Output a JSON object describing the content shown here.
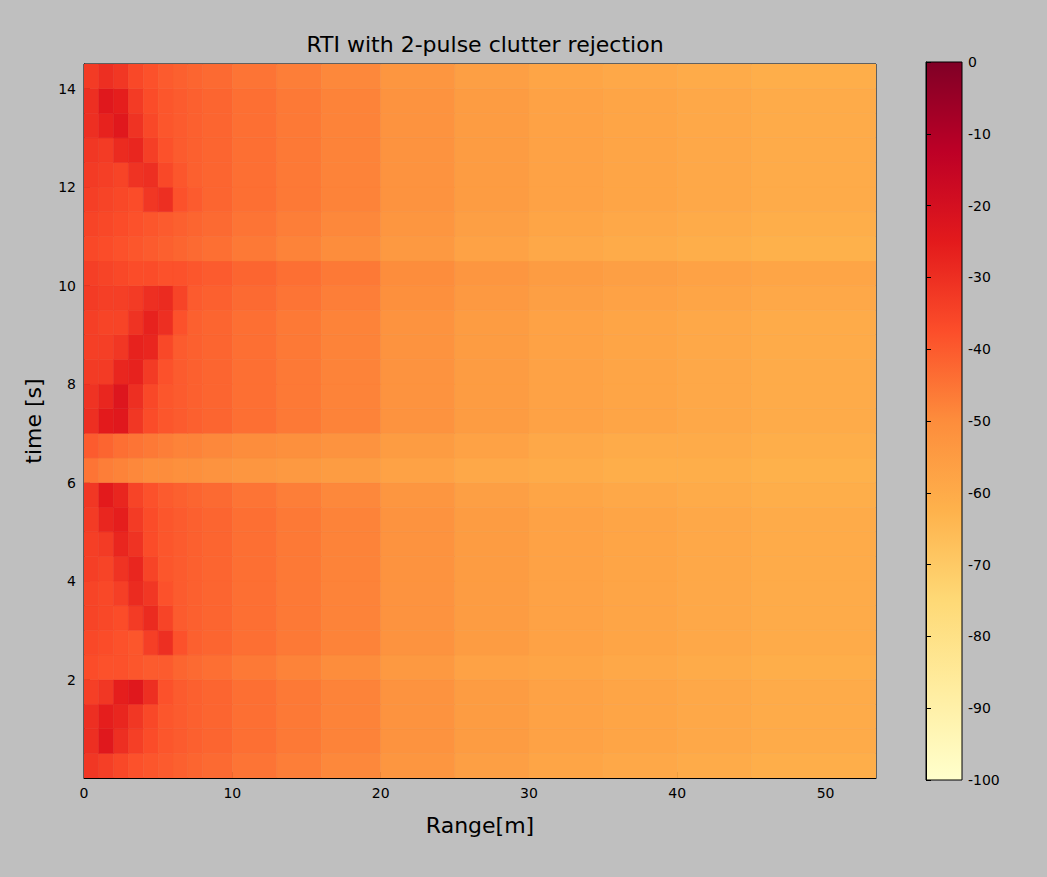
{
  "chart_data": {
    "type": "heatmap",
    "title": "RTI with 2-pulse clutter rejection",
    "x_label": "Range[m]",
    "y_label": "time [s]",
    "xlim": [
      0,
      53.4
    ],
    "xticks": [
      0,
      10,
      20,
      30,
      40,
      50
    ],
    "ylim": [
      0,
      14.5
    ],
    "yticks": [
      2,
      4,
      6,
      8,
      10,
      12,
      14
    ],
    "x_edges": [
      0,
      1,
      2,
      3,
      4,
      5,
      6,
      7,
      8,
      10,
      13,
      16,
      20,
      25,
      30,
      35,
      40,
      45,
      53.4
    ],
    "y_edges": [
      0,
      0.5,
      1,
      1.5,
      2,
      2.5,
      3,
      3.5,
      4,
      4.5,
      5,
      5.5,
      6,
      6.5,
      7,
      7.5,
      8,
      8.5,
      9,
      9.5,
      10,
      10.5,
      11,
      11.5,
      12,
      12.5,
      13,
      13.5,
      14,
      14.5
    ],
    "cells": [
      [
        -32,
        -34,
        -36,
        -38,
        -39,
        -40,
        -41,
        -42,
        -43,
        -45,
        -47,
        -49,
        -53,
        -56,
        -58,
        -59,
        -60,
        -61
      ],
      [
        -30,
        -24,
        -30,
        -34,
        -37,
        -39,
        -40,
        -41,
        -42,
        -44,
        -46,
        -48,
        -52,
        -55,
        -57,
        -58,
        -59,
        -60
      ],
      [
        -30,
        -26,
        -28,
        -32,
        -36,
        -39,
        -40,
        -41,
        -42,
        -44,
        -46,
        -48,
        -52,
        -55,
        -57,
        -58,
        -59,
        -60
      ],
      [
        -34,
        -32,
        -26,
        -24,
        -30,
        -38,
        -40,
        -41,
        -42,
        -44,
        -46,
        -48,
        -52,
        -55,
        -57,
        -58,
        -59,
        -60
      ],
      [
        -37,
        -38,
        -38,
        -39,
        -40,
        -40,
        -42,
        -43,
        -44,
        -46,
        -48,
        -50,
        -54,
        -57,
        -58,
        -59,
        -60,
        -61
      ],
      [
        -36,
        -37,
        -38,
        -39,
        -34,
        -30,
        -38,
        -41,
        -42,
        -44,
        -46,
        -48,
        -52,
        -55,
        -57,
        -58,
        -59,
        -60
      ],
      [
        -35,
        -36,
        -37,
        -33,
        -29,
        -35,
        -40,
        -41,
        -42,
        -44,
        -46,
        -48,
        -52,
        -55,
        -57,
        -58,
        -59,
        -60
      ],
      [
        -35,
        -36,
        -34,
        -29,
        -32,
        -38,
        -40,
        -41,
        -42,
        -44,
        -46,
        -48,
        -52,
        -55,
        -57,
        -58,
        -59,
        -60
      ],
      [
        -34,
        -35,
        -31,
        -28,
        -35,
        -39,
        -40,
        -41,
        -42,
        -44,
        -46,
        -48,
        -52,
        -55,
        -57,
        -58,
        -59,
        -60
      ],
      [
        -34,
        -33,
        -28,
        -31,
        -37,
        -39,
        -40,
        -41,
        -42,
        -44,
        -46,
        -48,
        -52,
        -55,
        -57,
        -58,
        -59,
        -60
      ],
      [
        -33,
        -28,
        -26,
        -33,
        -37,
        -39,
        -40,
        -41,
        -42,
        -44,
        -46,
        -48,
        -52,
        -55,
        -57,
        -58,
        -59,
        -60
      ],
      [
        -32,
        -25,
        -28,
        -35,
        -38,
        -40,
        -41,
        -42,
        -43,
        -45,
        -47,
        -49,
        -53,
        -56,
        -58,
        -59,
        -60,
        -61
      ],
      [
        -45,
        -47,
        -48,
        -49,
        -50,
        -50,
        -51,
        -51,
        -52,
        -53,
        -54,
        -55,
        -57,
        -59,
        -60,
        -61,
        -61,
        -62
      ],
      [
        -40,
        -42,
        -44,
        -45,
        -46,
        -47,
        -48,
        -48,
        -49,
        -50,
        -51,
        -52,
        -55,
        -57,
        -59,
        -60,
        -60,
        -61
      ],
      [
        -30,
        -25,
        -24,
        -32,
        -37,
        -39,
        -40,
        -41,
        -42,
        -44,
        -46,
        -48,
        -52,
        -55,
        -57,
        -58,
        -59,
        -60
      ],
      [
        -31,
        -28,
        -23,
        -30,
        -36,
        -39,
        -40,
        -41,
        -42,
        -44,
        -46,
        -48,
        -52,
        -55,
        -57,
        -58,
        -59,
        -60
      ],
      [
        -33,
        -33,
        -28,
        -27,
        -33,
        -38,
        -40,
        -41,
        -42,
        -44,
        -46,
        -48,
        -52,
        -55,
        -57,
        -58,
        -59,
        -60
      ],
      [
        -34,
        -34,
        -32,
        -27,
        -28,
        -36,
        -40,
        -41,
        -42,
        -44,
        -46,
        -48,
        -52,
        -55,
        -57,
        -58,
        -59,
        -60
      ],
      [
        -34,
        -35,
        -35,
        -31,
        -27,
        -30,
        -38,
        -41,
        -42,
        -44,
        -46,
        -48,
        -52,
        -55,
        -57,
        -58,
        -59,
        -60
      ],
      [
        -33,
        -34,
        -34,
        -33,
        -30,
        -29,
        -35,
        -40,
        -41,
        -43,
        -45,
        -47,
        -51,
        -54,
        -56,
        -57,
        -58,
        -59
      ],
      [
        -34,
        -35,
        -36,
        -37,
        -37,
        -38,
        -38,
        -39,
        -40,
        -42,
        -44,
        -46,
        -50,
        -53,
        -55,
        -56,
        -57,
        -58
      ],
      [
        -36,
        -37,
        -38,
        -39,
        -40,
        -41,
        -42,
        -43,
        -44,
        -46,
        -48,
        -50,
        -54,
        -57,
        -59,
        -60,
        -61,
        -62
      ],
      [
        -35,
        -36,
        -37,
        -38,
        -39,
        -40,
        -41,
        -42,
        -43,
        -45,
        -47,
        -49,
        -53,
        -56,
        -58,
        -59,
        -60,
        -61
      ],
      [
        -34,
        -35,
        -36,
        -37,
        -32,
        -30,
        -38,
        -40,
        -42,
        -44,
        -46,
        -48,
        -52,
        -55,
        -57,
        -58,
        -59,
        -60
      ],
      [
        -33,
        -34,
        -35,
        -31,
        -30,
        -36,
        -39,
        -41,
        -42,
        -44,
        -46,
        -48,
        -52,
        -55,
        -57,
        -58,
        -59,
        -60
      ],
      [
        -32,
        -33,
        -29,
        -28,
        -34,
        -38,
        -40,
        -41,
        -42,
        -44,
        -46,
        -48,
        -52,
        -55,
        -57,
        -58,
        -59,
        -60
      ],
      [
        -30,
        -27,
        -24,
        -31,
        -36,
        -39,
        -40,
        -41,
        -42,
        -44,
        -46,
        -48,
        -52,
        -55,
        -57,
        -58,
        -59,
        -60
      ],
      [
        -30,
        -24,
        -26,
        -33,
        -37,
        -39,
        -40,
        -41,
        -42,
        -44,
        -46,
        -48,
        -52,
        -55,
        -57,
        -58,
        -59,
        -60
      ],
      [
        -33,
        -30,
        -32,
        -36,
        -38,
        -40,
        -41,
        -42,
        -43,
        -45,
        -47,
        -49,
        -53,
        -56,
        -58,
        -59,
        -60,
        -61
      ]
    ],
    "colorbar_range": [
      -100,
      0
    ],
    "colorbar_ticks": [
      -100,
      -90,
      -80,
      -70,
      -60,
      -50,
      -40,
      -30,
      -20,
      -10,
      0
    ],
    "colors": [
      "#ffffcc",
      "#ffeda0",
      "#fed976",
      "#feb24c",
      "#fd8d3c",
      "#fc4e2a",
      "#e31a1c",
      "#bd0026",
      "#800026"
    ]
  }
}
